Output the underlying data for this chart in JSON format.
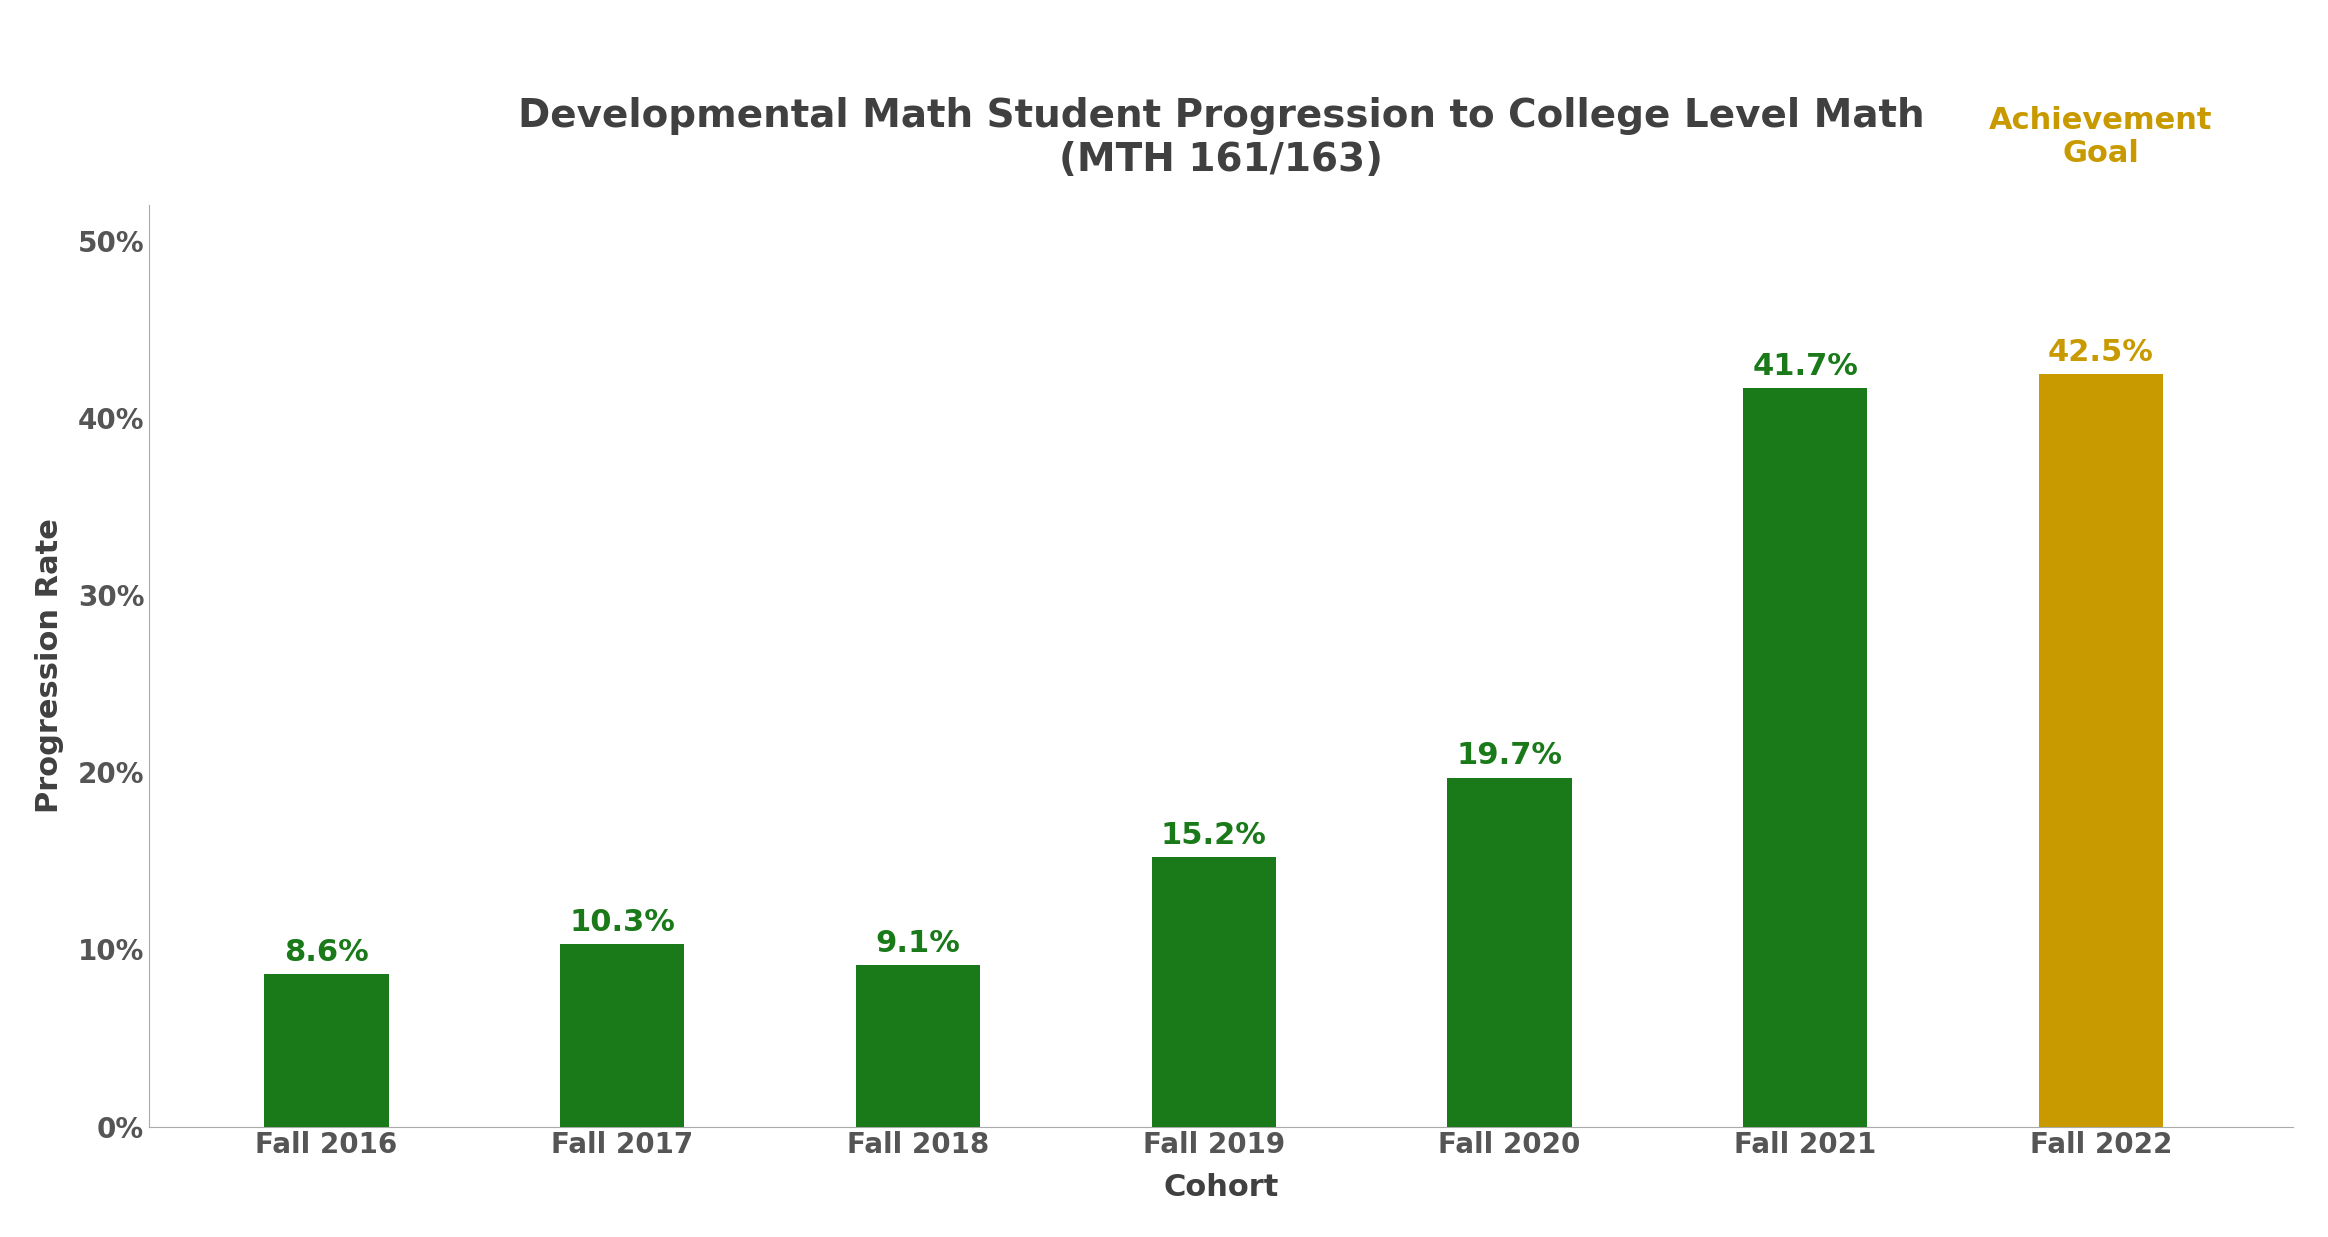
{
  "title_line1": "Developmental Math Student Progression to College Level Math",
  "title_line2": "(MTH 161/163)",
  "xlabel": "Cohort",
  "ylabel": "Progression Rate",
  "categories": [
    "Fall 2016",
    "Fall 2017",
    "Fall 2018",
    "Fall 2019",
    "Fall 2020",
    "Fall 2021",
    "Fall 2022"
  ],
  "values": [
    8.6,
    10.3,
    9.1,
    15.2,
    19.7,
    41.7,
    42.5
  ],
  "bar_colors": [
    "#1a7a1a",
    "#1a7a1a",
    "#1a7a1a",
    "#1a7a1a",
    "#1a7a1a",
    "#1a7a1a",
    "#c99a00"
  ],
  "label_colors": [
    "#1a7a1a",
    "#1a7a1a",
    "#1a7a1a",
    "#1a7a1a",
    "#1a7a1a",
    "#1a7a1a",
    "#c99a00"
  ],
  "bar_labels": [
    "8.6%",
    "10.3%",
    "9.1%",
    "15.2%",
    "19.7%",
    "41.7%",
    "42.5%"
  ],
  "achievement_label": "Achievement\nGoal",
  "achievement_color": "#c99a00",
  "ylim": [
    0,
    52
  ],
  "yticks": [
    0,
    10,
    20,
    30,
    40,
    50
  ],
  "ytick_labels": [
    "0%",
    "10%",
    "20%",
    "30%",
    "40%",
    "50%"
  ],
  "title_color": "#404040",
  "axis_label_color": "#404040",
  "tick_label_color": "#555555",
  "background_color": "#ffffff",
  "title_fontsize": 28,
  "axis_label_fontsize": 22,
  "tick_fontsize": 20,
  "bar_label_fontsize": 22,
  "achievement_fontsize": 22,
  "bar_width": 0.42
}
